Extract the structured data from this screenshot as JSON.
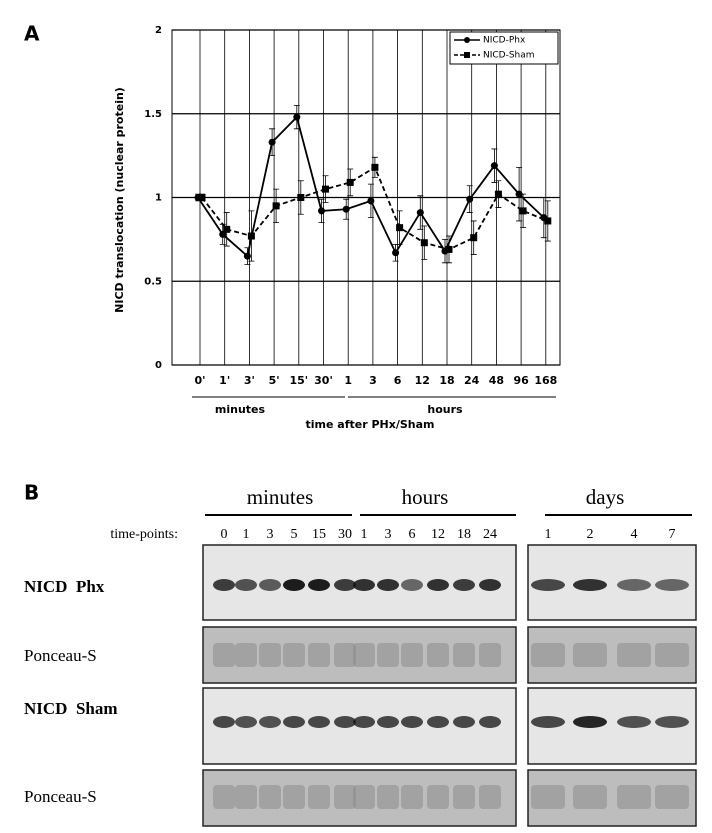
{
  "panel_a": {
    "label": "A"
  },
  "chart_data": {
    "type": "line",
    "y_label": "NICD translocation (nuclear protein)",
    "x_label": "time after PHx/Sham",
    "groups": [
      "minutes",
      "hours"
    ],
    "categories": [
      "0'",
      "1'",
      "3'",
      "5'",
      "15'",
      "30'",
      "1",
      "3",
      "6",
      "12",
      "18",
      "24",
      "48",
      "96",
      "168"
    ],
    "series": [
      {
        "name": "NICD-Phx",
        "color": "#000000",
        "dash": false,
        "marker": "circle",
        "values": [
          1.0,
          0.78,
          0.65,
          1.33,
          1.48,
          0.92,
          0.93,
          0.98,
          0.67,
          0.91,
          0.68,
          0.99,
          1.19,
          1.02,
          0.88
        ],
        "errors": [
          0.02,
          0.06,
          0.05,
          0.08,
          0.07,
          0.07,
          0.06,
          0.1,
          0.05,
          0.1,
          0.07,
          0.08,
          0.1,
          0.16,
          0.12
        ]
      },
      {
        "name": "NICD-Sham",
        "color": "#000000",
        "dash": true,
        "marker": "square",
        "values": [
          1.0,
          0.81,
          0.77,
          0.95,
          1.0,
          1.05,
          1.09,
          1.18,
          0.82,
          0.73,
          0.69,
          0.76,
          1.02,
          0.92,
          0.86
        ],
        "errors": [
          0.02,
          0.1,
          0.15,
          0.1,
          0.1,
          0.08,
          0.08,
          0.06,
          0.1,
          0.1,
          0.08,
          0.1,
          0.08,
          0.1,
          0.12
        ]
      }
    ],
    "ylim": [
      0,
      2
    ],
    "yticks": [
      0,
      0.5,
      1,
      1.5,
      2
    ],
    "grid": true,
    "legend": "top-right"
  },
  "panel_b": {
    "label": "B",
    "headers": [
      "minutes",
      "hours",
      "days"
    ],
    "time_points_label": "time-points:",
    "lanes_left": [
      "0",
      "1",
      "3",
      "5",
      "15",
      "30",
      "1",
      "3",
      "6",
      "12",
      "18",
      "24"
    ],
    "lanes_right": [
      "1",
      "2",
      "4",
      "7"
    ],
    "rows": [
      "NICD  Phx",
      "Ponceau-S",
      "NICD  Sham",
      "Ponceau-S"
    ]
  }
}
